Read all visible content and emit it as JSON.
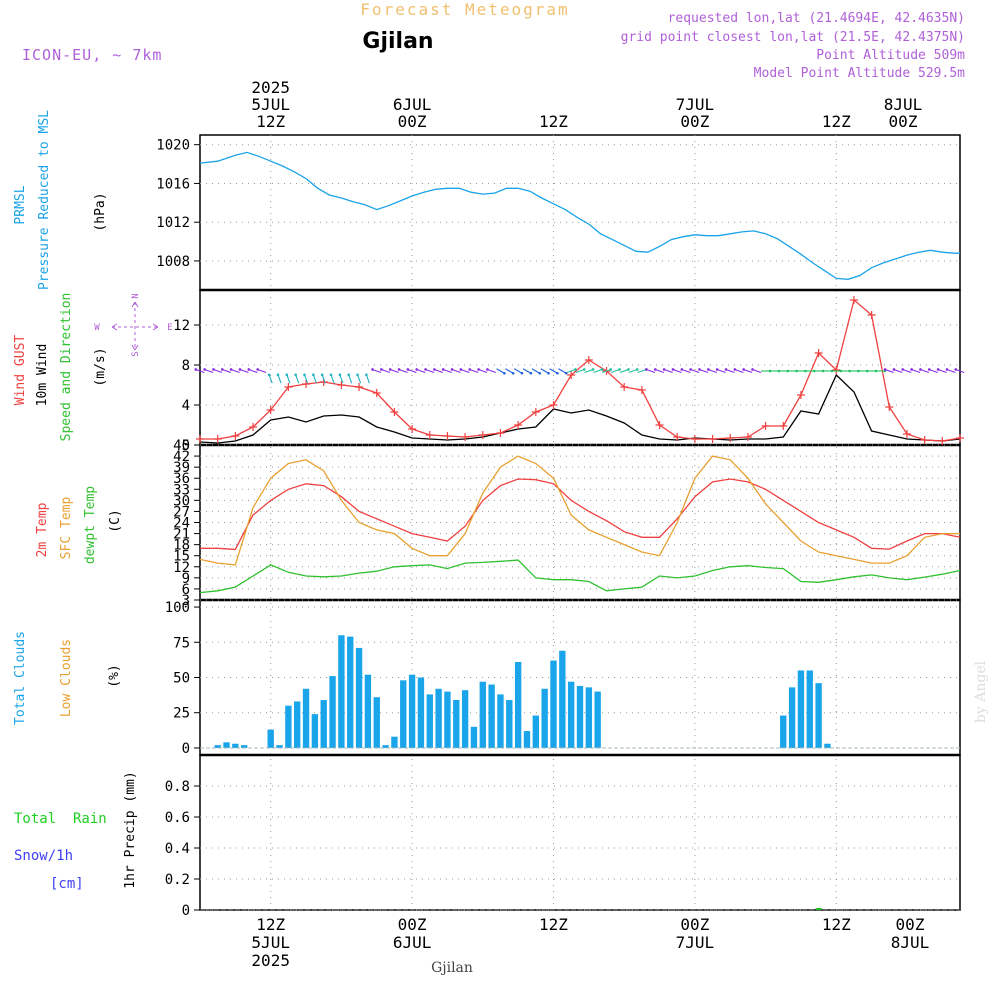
{
  "header": {
    "subtitle": "Forecast Meteogram",
    "location": "Gjilan",
    "model": "ICON-EU, ~ 7km",
    "requested": "requested lon,lat (21.4694E, 42.4635N)",
    "gridpoint": "grid point closest lon,lat (21.5E, 42.4375N)",
    "point_alt": "Point Altitude 509m",
    "model_alt": "Model Point Altitude 529.5m",
    "watermark": "by Angel",
    "footer_location": "Gjilan"
  },
  "time_axis": {
    "top": [
      {
        "year": "2025",
        "date": "5JUL",
        "hour": "12Z"
      },
      {
        "year": "",
        "date": "6JUL",
        "hour": "00Z"
      },
      {
        "year": "",
        "date": "",
        "hour": "12Z"
      },
      {
        "year": "",
        "date": "7JUL",
        "hour": "00Z"
      },
      {
        "year": "",
        "date": "",
        "hour": "12Z"
      },
      {
        "year": "",
        "date": "8JUL",
        "hour": "00Z"
      }
    ],
    "bottom": [
      {
        "hour": "12Z",
        "date": "5JUL",
        "year": "2025"
      },
      {
        "hour": "00Z",
        "date": "6JUL",
        "year": ""
      },
      {
        "hour": "12Z",
        "date": "",
        "year": ""
      },
      {
        "hour": "00Z",
        "date": "7JUL",
        "year": ""
      },
      {
        "hour": "12Z",
        "date": "",
        "year": ""
      },
      {
        "hour": "00Z",
        "date": "8JUL",
        "year": ""
      }
    ]
  },
  "panels": {
    "pressure": {
      "label1": "PRMSL",
      "label2": "Pressure Reduced to MSL",
      "unit": "(hPa)"
    },
    "wind": {
      "label_gust": "Wind GUST",
      "label_wind": "10m Wind",
      "label_dir": "Speed and Direction",
      "unit": "(m/s)",
      "compass_n": "N",
      "compass_s": "S",
      "compass_w": "W",
      "compass_e": "E"
    },
    "temp": {
      "label_t2m": "2m Temp",
      "label_sfc": "SFC Temp",
      "label_dew": "dewpt Temp",
      "unit": "(C)"
    },
    "clouds": {
      "label_total": "Total Clouds",
      "label_low": "Low Clouds",
      "unit": "(%)"
    },
    "precip": {
      "label_rain": "Total  Rain",
      "label_snow": "Snow/1h",
      "label_cm": "[cm]",
      "label_precip": "1hr Precip (mm)"
    }
  },
  "chart_data": [
    {
      "type": "line",
      "title": "PRMSL",
      "ylabel": "(hPa)",
      "ylim": [
        1005,
        1021
      ],
      "yticks": [
        1008,
        1012,
        1016,
        1020
      ],
      "x_hours": [
        0,
        3,
        6,
        8,
        10,
        12,
        14,
        16,
        18,
        20,
        22,
        24,
        26,
        28,
        30,
        32,
        34,
        36,
        38,
        40,
        42,
        44,
        46,
        48,
        50,
        52,
        54,
        56,
        58,
        60,
        62,
        64,
        66,
        68,
        70,
        72,
        74,
        76,
        78,
        80,
        82,
        84,
        86,
        88,
        90,
        92,
        94,
        96,
        98,
        100,
        102,
        104,
        106,
        108,
        110,
        112,
        114,
        116,
        118,
        120,
        122,
        124,
        126,
        128,
        129
      ],
      "series": [
        {
          "name": "PRMSL",
          "color": "#1ba3e8",
          "values": [
            1018.1,
            1018.3,
            1018.9,
            1019.2,
            1018.8,
            1018.3,
            1017.8,
            1017.2,
            1016.5,
            1015.5,
            1014.8,
            1014.5,
            1014.1,
            1013.8,
            1013.3,
            1013.7,
            1014.2,
            1014.7,
            1015.1,
            1015.4,
            1015.5,
            1015.5,
            1015.1,
            1014.9,
            1015.0,
            1015.5,
            1015.5,
            1015.2,
            1014.5,
            1013.9,
            1013.3,
            1012.5,
            1011.8,
            1010.8,
            1010.2,
            1009.6,
            1009.0,
            1008.9,
            1009.5,
            1010.2,
            1010.5,
            1010.7,
            1010.6,
            1010.6,
            1010.8,
            1011.0,
            1011.1,
            1010.8,
            1010.3,
            1009.5,
            1008.7,
            1007.8,
            1007.0,
            1006.2,
            1006.1,
            1006.5,
            1007.3,
            1007.8,
            1008.2,
            1008.6,
            1008.9,
            1009.1,
            1008.9,
            1008.8,
            1008.8
          ]
        }
      ]
    },
    {
      "type": "line",
      "title": "Wind",
      "ylabel": "(m/s)",
      "ylim": [
        0,
        15.5
      ],
      "yticks": [
        0,
        4,
        8,
        12
      ],
      "x_hours": [
        0,
        3,
        6,
        9,
        12,
        15,
        18,
        21,
        24,
        27,
        30,
        33,
        36,
        39,
        42,
        45,
        48,
        51,
        54,
        57,
        60,
        63,
        66,
        69,
        72,
        75,
        78,
        81,
        84,
        87,
        90,
        93,
        96,
        99,
        102,
        105,
        108,
        111,
        114,
        117,
        120,
        123,
        126,
        129
      ],
      "series": [
        {
          "name": "Wind GUST",
          "color": "#f04040",
          "values": [
            0.6,
            0.6,
            0.9,
            1.8,
            3.5,
            5.8,
            6.1,
            6.3,
            6.0,
            5.8,
            5.2,
            3.3,
            1.6,
            1.0,
            0.9,
            0.8,
            1.0,
            1.2,
            2.0,
            3.3,
            4.0,
            7.0,
            8.5,
            7.4,
            5.8,
            5.5,
            2.0,
            0.8,
            0.6,
            0.6,
            0.7,
            0.8,
            1.9,
            1.9,
            5.0,
            9.2,
            7.5,
            14.5,
            13.0,
            3.8,
            1.1,
            0.5,
            0.4,
            0.7
          ]
        },
        {
          "name": "10m Wind",
          "color": "#000000",
          "values": [
            0.3,
            0.2,
            0.4,
            1.0,
            2.5,
            2.8,
            2.3,
            2.9,
            3.0,
            2.8,
            1.8,
            1.3,
            0.7,
            0.6,
            0.5,
            0.6,
            0.8,
            1.2,
            1.6,
            1.8,
            3.6,
            3.2,
            3.5,
            2.9,
            2.2,
            1.0,
            0.6,
            0.5,
            0.7,
            0.6,
            0.5,
            0.6,
            0.6,
            0.8,
            3.4,
            3.1,
            7.0,
            5.3,
            1.4,
            1.0,
            0.6,
            0.5,
            0.4,
            0.6
          ]
        }
      ]
    },
    {
      "type": "line",
      "title": "Temperature",
      "ylabel": "(C)",
      "ylim": [
        3,
        45
      ],
      "yticks": [
        3,
        6,
        9,
        12,
        15,
        18,
        21,
        24,
        27,
        30,
        33,
        36,
        39,
        42,
        45
      ],
      "x_hours": [
        0,
        3,
        6,
        9,
        12,
        15,
        18,
        21,
        24,
        27,
        30,
        33,
        36,
        39,
        42,
        45,
        48,
        51,
        54,
        57,
        60,
        63,
        66,
        69,
        72,
        75,
        78,
        81,
        84,
        87,
        90,
        93,
        96,
        99,
        102,
        105,
        108,
        111,
        114,
        117,
        120,
        123,
        126,
        129
      ],
      "series": [
        {
          "name": "2m Temp",
          "color": "#f04040",
          "values": [
            17,
            17,
            16.7,
            26,
            30,
            33,
            34.5,
            34,
            31,
            27,
            25,
            23,
            21,
            20,
            19,
            23,
            30,
            34,
            35.8,
            35.6,
            34.5,
            30,
            27,
            24.5,
            21.5,
            20,
            20,
            25,
            31,
            35,
            35.8,
            35,
            33,
            30,
            27,
            24,
            22,
            20,
            17,
            16.8,
            19,
            21,
            21,
            20
          ]
        },
        {
          "name": "SFC Temp",
          "color": "#e8a030",
          "values": [
            14,
            13,
            12.5,
            28,
            36,
            40,
            41,
            38,
            30,
            24,
            22,
            21,
            17,
            15,
            15,
            21,
            32,
            39,
            42,
            40,
            36,
            26,
            22,
            20,
            18,
            16,
            15,
            24,
            36,
            42,
            41,
            36,
            29,
            24,
            19,
            16,
            15,
            14,
            13,
            13,
            15,
            20,
            21,
            21
          ]
        },
        {
          "name": "dewpt Temp",
          "color": "#30c030",
          "values": [
            5,
            5.5,
            6.5,
            9.5,
            12.5,
            10.5,
            9.5,
            9.3,
            9.5,
            10.3,
            10.8,
            12,
            12.3,
            12.5,
            11.5,
            13,
            13.2,
            13.5,
            13.8,
            9,
            8.5,
            8.5,
            8,
            5.5,
            6,
            6.5,
            9.5,
            9,
            9.5,
            11,
            12,
            12.3,
            11.8,
            11.5,
            8,
            7.8,
            8.5,
            9.3,
            9.8,
            9,
            8.5,
            9.2,
            10,
            11
          ]
        }
      ]
    },
    {
      "type": "bar",
      "title": "Total Clouds",
      "ylabel": "(%)",
      "ylim": [
        -5,
        105
      ],
      "yticks": [
        0,
        25,
        50,
        75,
        100
      ],
      "x_start_hour": 12,
      "x_step_hours": 1.5,
      "series": [
        {
          "name": "Total Clouds",
          "color": "#1aa5ea",
          "values": [
            13,
            2,
            30,
            33,
            42,
            24,
            34,
            51,
            80,
            79,
            71,
            52,
            36,
            2,
            8,
            48,
            52,
            50,
            38,
            42,
            40,
            34,
            41,
            15,
            47,
            45,
            38,
            34,
            61,
            12,
            23,
            42,
            62,
            69,
            47,
            44,
            43,
            40,
            0,
            0,
            0,
            0,
            0,
            0,
            0,
            0,
            0,
            0,
            0,
            0,
            0,
            0,
            0,
            0,
            0,
            0,
            0,
            0,
            23,
            43,
            55,
            55,
            46,
            3
          ]
        }
      ],
      "extra_bars": [
        {
          "hour": 3,
          "value": 2
        },
        {
          "hour": 4.5,
          "value": 4
        },
        {
          "hour": 6,
          "value": 3
        },
        {
          "hour": 7.5,
          "value": 2
        }
      ]
    },
    {
      "type": "line",
      "title": "1hr Precip",
      "ylabel": "1hr Precip (mm)",
      "ylim": [
        0,
        1
      ],
      "yticks": [
        0,
        0.2,
        0.4,
        0.6,
        0.8
      ],
      "series": [
        {
          "name": "Total Rain",
          "color": "#2e8b2e",
          "values": [
            0
          ]
        }
      ]
    }
  ],
  "colors": {
    "pressure": "#1ba3e8",
    "gust": "#f04040",
    "wind": "#000000",
    "sfc": "#e8a030",
    "dew": "#30c030",
    "clouds": "#1aa5ea",
    "title_orange": "#f0c070",
    "purple": "#b060d8",
    "rain": "#20d020",
    "snow": "#4040f0"
  }
}
